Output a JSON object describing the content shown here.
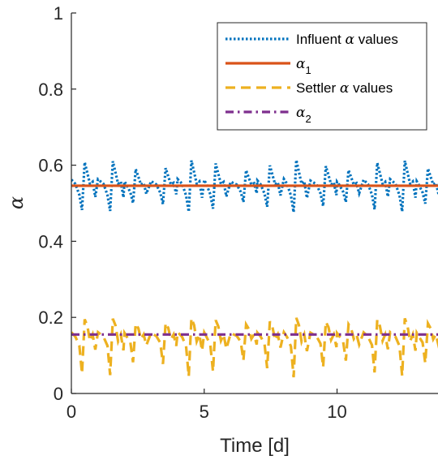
{
  "chart_data": {
    "type": "line",
    "xlabel": "Time [d]",
    "ylabel": "α",
    "xlim": [
      0,
      13.8
    ],
    "ylim": [
      0,
      1
    ],
    "xticks": [
      "0",
      "5",
      "10"
    ],
    "xtick_values": [
      0,
      5,
      10
    ],
    "yticks": [
      "0",
      "0.2",
      "0.4",
      "0.6",
      "0.8",
      "1"
    ],
    "ytick_values": [
      0,
      0.2,
      0.4,
      0.6,
      0.8,
      1
    ],
    "grid": false,
    "legend_position": "top-right",
    "series": [
      {
        "label_text": "Influent ",
        "label_greek": "α",
        "label_suffix": " values",
        "color": "#0072BD",
        "style": "dotted",
        "mean": 0.545,
        "period_days": 1,
        "approx_range": [
          0.445,
          0.61
        ],
        "x": [
          0.0,
          0.15,
          0.3,
          0.4,
          0.5,
          0.6,
          0.7,
          0.8,
          0.9,
          1.0
        ],
        "y": [
          0.56,
          0.55,
          0.525,
          0.49,
          0.6,
          0.575,
          0.55,
          0.555,
          0.52,
          0.56
        ]
      },
      {
        "label_text": "",
        "label_greek": "α",
        "label_sub": "1",
        "color": "#D95319",
        "style": "solid",
        "value": 0.546
      },
      {
        "label_text": "Settler ",
        "label_greek": "α",
        "label_suffix": " values",
        "color": "#EDB120",
        "style": "dashed",
        "mean": 0.155,
        "period_days": 1,
        "approx_range": [
          0.06,
          0.2
        ],
        "x": [
          0.0,
          0.15,
          0.3,
          0.4,
          0.5,
          0.6,
          0.7,
          0.8,
          0.9,
          1.0
        ],
        "y": [
          0.16,
          0.15,
          0.13,
          0.065,
          0.19,
          0.175,
          0.14,
          0.155,
          0.12,
          0.16
        ]
      },
      {
        "label_text": "",
        "label_greek": "α",
        "label_sub": "2",
        "color": "#7E2F8E",
        "style": "dash-dot",
        "value": 0.155
      }
    ]
  }
}
